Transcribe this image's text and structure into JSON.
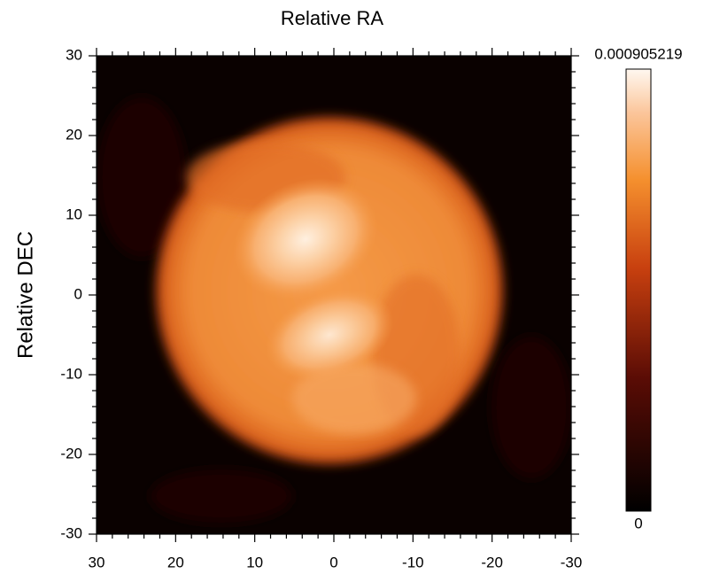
{
  "chart_data": {
    "type": "image",
    "xlabel": "Relative RA",
    "ylabel": "Relative DEC",
    "xlim": [
      30,
      -30
    ],
    "xticks": [
      30,
      20,
      10,
      0,
      -10,
      -20,
      -30
    ],
    "ylim": [
      -30,
      30
    ],
    "yticks": [
      -30,
      -20,
      -10,
      0,
      10,
      20,
      30
    ],
    "clim": [
      0,
      0.000905219
    ],
    "cticks": [
      0,
      0.000905219
    ]
  }
}
